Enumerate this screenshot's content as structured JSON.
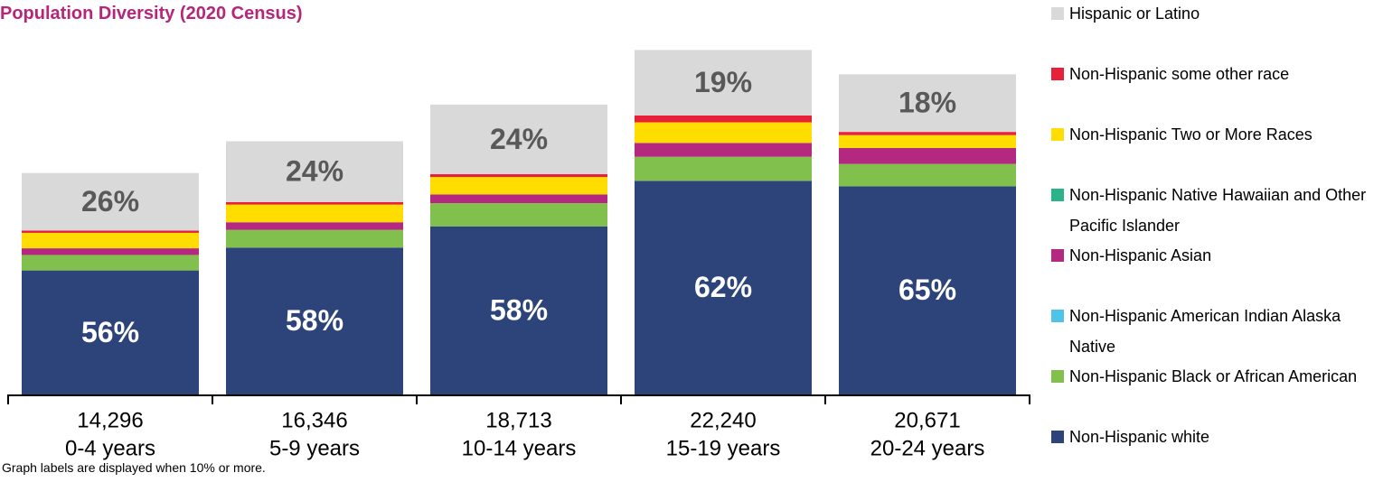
{
  "chart_data": {
    "type": "stacked-bar",
    "title": "Population Diversity (2020 Census)",
    "note": "Graph labels are displayed when 10% or more.",
    "categories": [
      "0-4 years",
      "5-9 years",
      "10-14 years",
      "15-19 years",
      "20-24 years"
    ],
    "totals": [
      {
        "value": 14296,
        "label": "14,296"
      },
      {
        "value": 16346,
        "label": "16,346"
      },
      {
        "value": 18713,
        "label": "18,713"
      },
      {
        "value": 22240,
        "label": "22,240"
      },
      {
        "value": 20671,
        "label": "20,671"
      }
    ],
    "series": [
      {
        "name": "Non-Hispanic white",
        "color": "#2c4479",
        "values": [
          56,
          58,
          58,
          62,
          65
        ],
        "value_labels": [
          "56%",
          "58%",
          "58%",
          "62%",
          "65%"
        ]
      },
      {
        "name": "Non-Hispanic Black or African American",
        "color": "#82c04e",
        "values": [
          7,
          7,
          8,
          7,
          7
        ]
      },
      {
        "name": "Non-Hispanic American Indian Alaska Native",
        "color": "#4fc3e8",
        "values": [
          0,
          0,
          0,
          0,
          0
        ]
      },
      {
        "name": "Non-Hispanic Asian",
        "color": "#b5287f",
        "values": [
          3,
          3,
          3,
          4,
          5
        ]
      },
      {
        "name": "Non-Hispanic Native Hawaiian and Other Pacific Islander",
        "color": "#2bb38a",
        "values": [
          0,
          0,
          0,
          0,
          0
        ]
      },
      {
        "name": "Non-Hispanic Two or More Races",
        "color": "#ffdd00",
        "values": [
          7,
          7,
          6,
          6,
          4
        ]
      },
      {
        "name": "Non-Hispanic some other race",
        "color": "#e8213a",
        "values": [
          1,
          1,
          1,
          2,
          1
        ]
      },
      {
        "name": "Hispanic or Latino",
        "color": "#d9d9d9",
        "values": [
          26,
          24,
          24,
          19,
          18
        ],
        "value_labels": [
          "26%",
          "24%",
          "24%",
          "19%",
          "18%"
        ]
      }
    ]
  }
}
